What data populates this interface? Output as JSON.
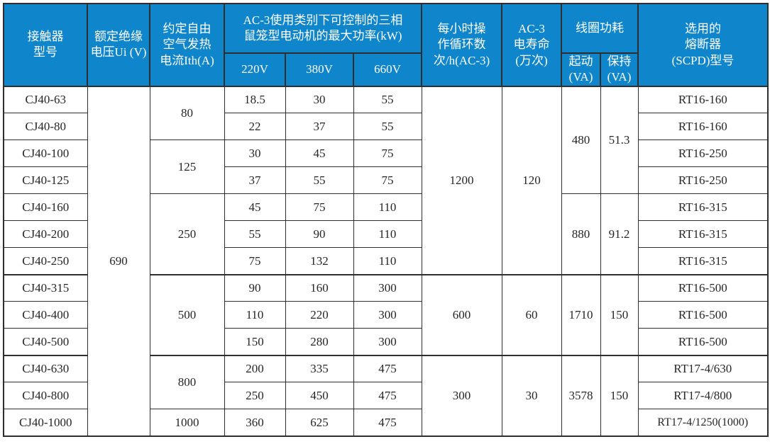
{
  "table": {
    "colors": {
      "header_bg": "#0f85cb",
      "header_text": "#ffffff",
      "border": "#2e2e2e",
      "body_text": "#262626"
    },
    "headers": {
      "model": "接触器\n型号",
      "ui": "额定绝缘\n电压Ui (V)",
      "ith": "约定自由\n空气发热\n电流Ith(A)",
      "power_group": "AC-3使用类别下可控制的三相\n鼠笼型电动机的最大功率(kW)",
      "v220": "220V",
      "v380": "380V",
      "v660": "660V",
      "cycles": "每小时操\n作循环数\n次/h(AC-3)",
      "life": "AC-3\n电寿命\n(万次)",
      "coil_group": "线圈功耗",
      "coil_start": "起动\n(VA)",
      "coil_hold": "保持\n(VA)",
      "fuse": "选用的\n熔断器\n(SCPD)型号"
    },
    "rows": [
      {
        "model": "CJ40-63",
        "p220": "18.5",
        "p380": "30",
        "p660": "55",
        "fuse": "RT16-160"
      },
      {
        "model": "CJ40-80",
        "p220": "22",
        "p380": "37",
        "p660": "55",
        "fuse": "RT16-160"
      },
      {
        "model": "CJ40-100",
        "p220": "30",
        "p380": "45",
        "p660": "75",
        "fuse": "RT16-250"
      },
      {
        "model": "CJ40-125",
        "p220": "37",
        "p380": "55",
        "p660": "75",
        "fuse": "RT16-250"
      },
      {
        "model": "CJ40-160",
        "p220": "45",
        "p380": "75",
        "p660": "110",
        "fuse": "RT16-315"
      },
      {
        "model": "CJ40-200",
        "p220": "55",
        "p380": "90",
        "p660": "110",
        "fuse": "RT16-315"
      },
      {
        "model": "CJ40-250",
        "p220": "75",
        "p380": "132",
        "p660": "110",
        "fuse": "RT16-315"
      },
      {
        "model": "CJ40-315",
        "p220": "90",
        "p380": "160",
        "p660": "300",
        "fuse": "RT16-500"
      },
      {
        "model": "CJ40-400",
        "p220": "110",
        "p380": "220",
        "p660": "300",
        "fuse": "RT16-500"
      },
      {
        "model": "CJ40-500",
        "p220": "150",
        "p380": "280",
        "p660": "300",
        "fuse": "RT16-500"
      },
      {
        "model": "CJ40-630",
        "p220": "200",
        "p380": "335",
        "p660": "475",
        "fuse": "RT17-4/630"
      },
      {
        "model": "CJ40-800",
        "p220": "250",
        "p380": "450",
        "p660": "475",
        "fuse": "RT17-4/800"
      },
      {
        "model": "CJ40-1000",
        "p220": "360",
        "p380": "625",
        "p660": "475",
        "fuse": "RT17-4/1250(1000)"
      }
    ],
    "spans": {
      "ui": {
        "value": "690",
        "rows": 13
      },
      "ith": [
        {
          "value": "80",
          "rows": 2
        },
        {
          "value": "125",
          "rows": 2
        },
        {
          "value": "250",
          "rows": 3
        },
        {
          "value": "500",
          "rows": 3
        },
        {
          "value": "800",
          "rows": 2
        },
        {
          "value": "1000",
          "rows": 1
        }
      ],
      "cycles": [
        {
          "value": "1200",
          "rows": 7
        },
        {
          "value": "600",
          "rows": 3
        },
        {
          "value": "300",
          "rows": 3
        }
      ],
      "life": [
        {
          "value": "120",
          "rows": 7
        },
        {
          "value": "60",
          "rows": 3
        },
        {
          "value": "30",
          "rows": 3
        }
      ],
      "coil_start": [
        {
          "value": "480",
          "rows": 4
        },
        {
          "value": "880",
          "rows": 3
        },
        {
          "value": "1710",
          "rows": 3
        },
        {
          "value": "3578",
          "rows": 3
        }
      ],
      "coil_hold": [
        {
          "value": "51.3",
          "rows": 4
        },
        {
          "value": "91.2",
          "rows": 3
        },
        {
          "value": "150",
          "rows": 3
        },
        {
          "value": "150",
          "rows": 3
        }
      ]
    },
    "thick_row_starts": [
      7,
      10
    ]
  }
}
